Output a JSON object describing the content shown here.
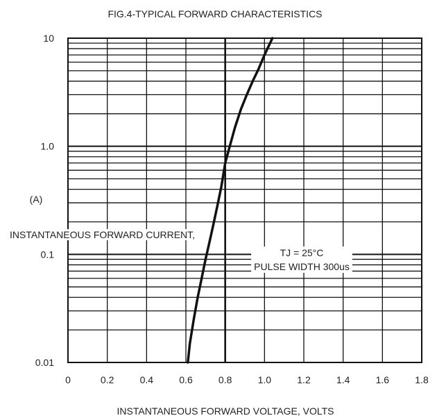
{
  "chart_data": {
    "type": "line",
    "title": "FIG.4-TYPICAL FORWARD CHARACTERISTICS",
    "xlabel": "INSTANTANEOUS FORWARD VOLTAGE, VOLTS",
    "ylabel": "INSTANTANEOUS FORWARD CURRENT,",
    "yunit": "(A)",
    "xlim": [
      0,
      1.8
    ],
    "ylim": [
      0.01,
      10
    ],
    "yscale": "log",
    "grid": true,
    "xticks": [
      0,
      0.2,
      0.4,
      0.6,
      0.8,
      1.0,
      1.2,
      1.4,
      1.6,
      1.8
    ],
    "xtick_labels": [
      "0",
      "0.2",
      "0.4",
      "0.6",
      "0.8",
      "1.0",
      "1.2",
      "1.4",
      "1.6",
      "1.8"
    ],
    "yticks": [
      0.01,
      0.1,
      1.0,
      10
    ],
    "ytick_labels": [
      "0.01",
      "0.1",
      "1.0",
      "10"
    ],
    "annotations": [
      "TJ = 25°C",
      "PULSE WIDTH 300us"
    ],
    "series": [
      {
        "x": [
          0.61,
          0.62,
          0.64,
          0.66,
          0.68,
          0.7,
          0.72,
          0.74,
          0.76,
          0.78,
          0.8,
          0.82,
          0.85,
          0.88,
          0.91,
          0.94,
          0.97,
          1.0,
          1.04
        ],
        "y": [
          0.01,
          0.015,
          0.025,
          0.04,
          0.06,
          0.09,
          0.13,
          0.19,
          0.28,
          0.42,
          0.7,
          0.95,
          1.5,
          2.2,
          3.0,
          4.0,
          5.2,
          7.0,
          10
        ]
      }
    ]
  }
}
